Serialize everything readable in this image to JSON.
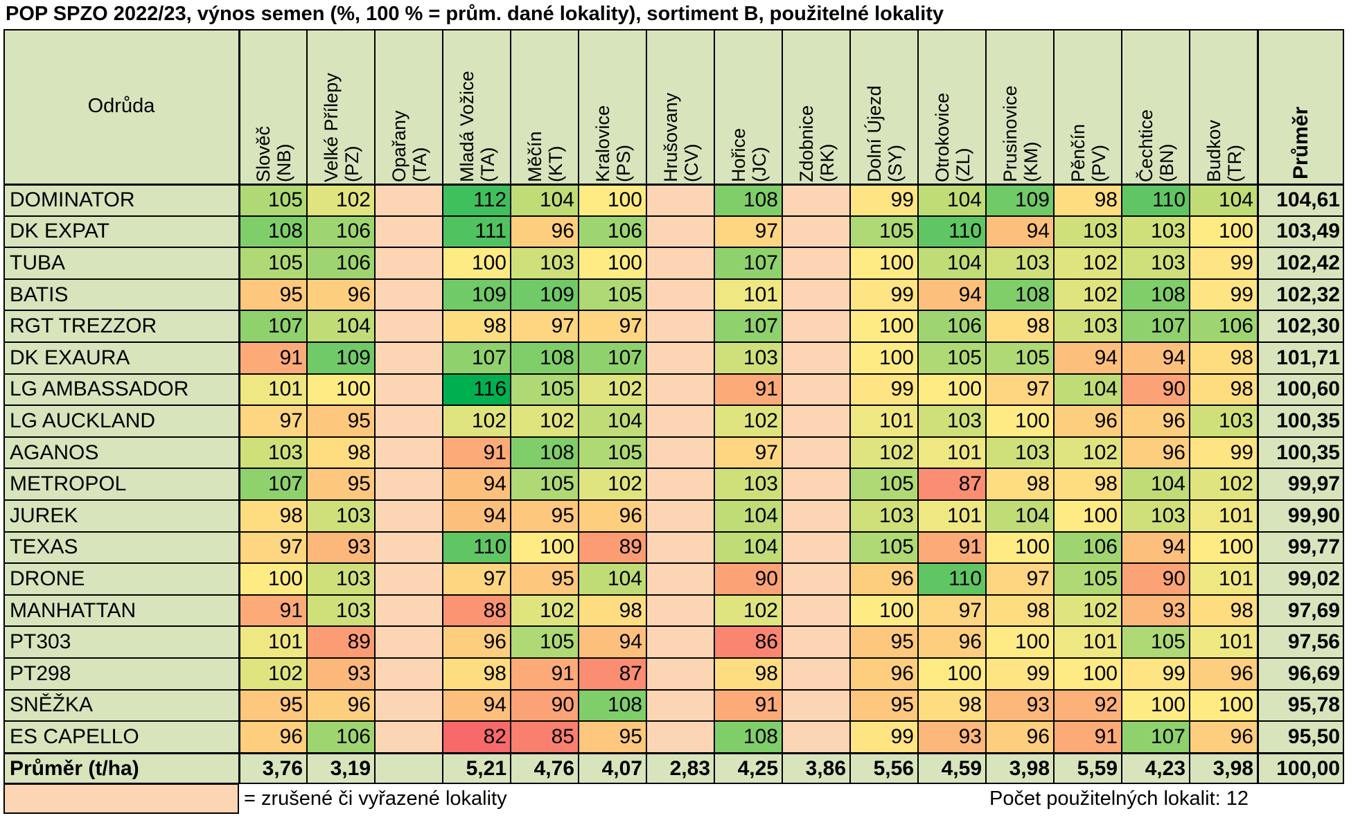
{
  "title": "POP SPZO 2022/23, výnos semen (%, 100 % = prům. dané lokality), sortiment B, použitelné lokality",
  "corner_header": "Odrůda",
  "columns": [
    {
      "label": "Slověč\n(NB)",
      "valid": true
    },
    {
      "label": "Velké Přílepy\n(PZ)",
      "valid": true
    },
    {
      "label": "Opařany\n(TA)",
      "valid": false
    },
    {
      "label": "Mladá Vožice\n(TA)",
      "valid": true
    },
    {
      "label": "Měčín\n(KT)",
      "valid": true
    },
    {
      "label": "Kralovice\n(PS)",
      "valid": true
    },
    {
      "label": "Hrušovany\n(CV)",
      "valid": false
    },
    {
      "label": "Hořice\n(JC)",
      "valid": true
    },
    {
      "label": "Zdobnice\n(RK)",
      "valid": false
    },
    {
      "label": "Dolní Újezd\n(SY)",
      "valid": true
    },
    {
      "label": "Otrokovice\n(ZL)",
      "valid": true
    },
    {
      "label": "Prusinovice\n(KM)",
      "valid": true
    },
    {
      "label": "Pěnčín\n(PV)",
      "valid": true
    },
    {
      "label": "Čechtice\n(BN)",
      "valid": true
    },
    {
      "label": "Budkov\n(TR)",
      "valid": true
    }
  ],
  "avg_header": "Průměr",
  "rows": [
    {
      "name": "DOMINATOR",
      "values": [
        105,
        102,
        null,
        112,
        104,
        100,
        null,
        108,
        null,
        99,
        104,
        109,
        98,
        110,
        104
      ],
      "avg": "104,61"
    },
    {
      "name": "DK EXPAT",
      "values": [
        108,
        106,
        null,
        111,
        96,
        106,
        null,
        97,
        null,
        105,
        110,
        94,
        103,
        103,
        100
      ],
      "avg": "103,49"
    },
    {
      "name": "TUBA",
      "values": [
        105,
        106,
        null,
        100,
        103,
        100,
        null,
        107,
        null,
        100,
        104,
        103,
        102,
        103,
        99
      ],
      "avg": "102,42"
    },
    {
      "name": "BATIS",
      "values": [
        95,
        96,
        null,
        109,
        109,
        105,
        null,
        101,
        null,
        99,
        94,
        108,
        102,
        108,
        99
      ],
      "avg": "102,32"
    },
    {
      "name": "RGT TREZZOR",
      "values": [
        107,
        104,
        null,
        98,
        97,
        97,
        null,
        107,
        null,
        100,
        106,
        98,
        103,
        107,
        106
      ],
      "avg": "102,30"
    },
    {
      "name": "DK EXAURA",
      "values": [
        91,
        109,
        null,
        107,
        108,
        107,
        null,
        103,
        null,
        100,
        105,
        105,
        94,
        94,
        98
      ],
      "avg": "101,71"
    },
    {
      "name": "LG AMBASSADOR",
      "values": [
        101,
        100,
        null,
        116,
        105,
        102,
        null,
        91,
        null,
        99,
        100,
        97,
        104,
        90,
        98
      ],
      "avg": "100,60"
    },
    {
      "name": "LG AUCKLAND",
      "values": [
        97,
        95,
        null,
        102,
        102,
        104,
        null,
        102,
        null,
        101,
        103,
        100,
        96,
        96,
        103
      ],
      "avg": "100,35"
    },
    {
      "name": "AGANOS",
      "values": [
        103,
        98,
        null,
        91,
        108,
        105,
        null,
        97,
        null,
        102,
        101,
        103,
        102,
        96,
        99
      ],
      "avg": "100,35"
    },
    {
      "name": "METROPOL",
      "values": [
        107,
        95,
        null,
        94,
        105,
        102,
        null,
        103,
        null,
        105,
        87,
        98,
        98,
        104,
        102
      ],
      "avg": "99,97"
    },
    {
      "name": "JUREK",
      "values": [
        98,
        103,
        null,
        94,
        95,
        96,
        null,
        104,
        null,
        103,
        101,
        104,
        100,
        103,
        101
      ],
      "avg": "99,90"
    },
    {
      "name": "TEXAS",
      "values": [
        97,
        93,
        null,
        110,
        100,
        89,
        null,
        104,
        null,
        105,
        91,
        100,
        106,
        94,
        100
      ],
      "avg": "99,77"
    },
    {
      "name": "DRONE",
      "values": [
        100,
        103,
        null,
        97,
        95,
        104,
        null,
        90,
        null,
        96,
        110,
        97,
        105,
        90,
        101
      ],
      "avg": "99,02"
    },
    {
      "name": "MANHATTAN",
      "values": [
        91,
        103,
        null,
        88,
        102,
        98,
        null,
        102,
        null,
        100,
        97,
        98,
        102,
        93,
        98
      ],
      "avg": "97,69"
    },
    {
      "name": "PT303",
      "values": [
        101,
        89,
        null,
        96,
        105,
        94,
        null,
        86,
        null,
        95,
        96,
        100,
        101,
        105,
        101
      ],
      "avg": "97,56"
    },
    {
      "name": "PT298",
      "values": [
        102,
        93,
        null,
        98,
        91,
        87,
        null,
        98,
        null,
        96,
        100,
        99,
        100,
        99,
        96
      ],
      "avg": "96,69"
    },
    {
      "name": "SNĚŽKA",
      "values": [
        95,
        96,
        null,
        94,
        90,
        108,
        null,
        91,
        null,
        95,
        98,
        93,
        92,
        100,
        100
      ],
      "avg": "95,78"
    },
    {
      "name": "ES CAPELLO",
      "values": [
        96,
        106,
        null,
        82,
        85,
        95,
        null,
        108,
        null,
        99,
        93,
        96,
        91,
        107,
        96
      ],
      "avg": "95,50"
    }
  ],
  "footer": {
    "label": "Průměr (t/ha)",
    "values": [
      "3,76",
      "3,19",
      "",
      "5,21",
      "4,76",
      "4,07",
      "2,83",
      "4,25",
      "3,86",
      "5,56",
      "4,59",
      "3,98",
      "5,59",
      "4,23",
      "3,98"
    ],
    "avg": "100,00"
  },
  "legend": {
    "text": "= zrušené či vyřazené lokality",
    "swatch_color": "#fcd5b4"
  },
  "usable_count": "Počet použitelných lokalit:  12",
  "colors": {
    "header_bg": "#d8e4bc",
    "excluded_bg": "#fcd5b4",
    "scale_low": "#f8696b",
    "scale_mid": "#ffeb84",
    "scale_high": "#00b050"
  }
}
